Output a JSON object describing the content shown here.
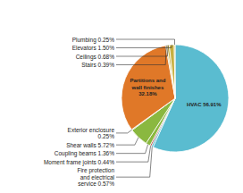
{
  "chart_data": {
    "type": "pie",
    "values": [
      56.91,
      0.57,
      0.44,
      1.36,
      5.72,
      0.25,
      32.18,
      0.39,
      0.68,
      1.5,
      0.25
    ],
    "colors": [
      "#5abcd0",
      "#5abcd0",
      "#b03030",
      "#8ab840",
      "#8ab840",
      "#8ab840",
      "#e07828",
      "#c8b040",
      "#c8b040",
      "#c8b040",
      "#c8b040"
    ],
    "value_labels": [
      "HVAC 56.91%",
      "Fire protection\nand electrical\nservice 0.57%",
      "Moment frame joints 0.44%",
      "Coupling beams 1.36%",
      "Shear walls 5.72%",
      "Exterior enclosure\n0.25%",
      "Partitions and\nwall finishes\n32.18%",
      "Stairs 0.39%",
      "Ceilings 0.68%",
      "Elevators 1.50%",
      "Plumbing 0.25%"
    ],
    "data_labels": true
  }
}
